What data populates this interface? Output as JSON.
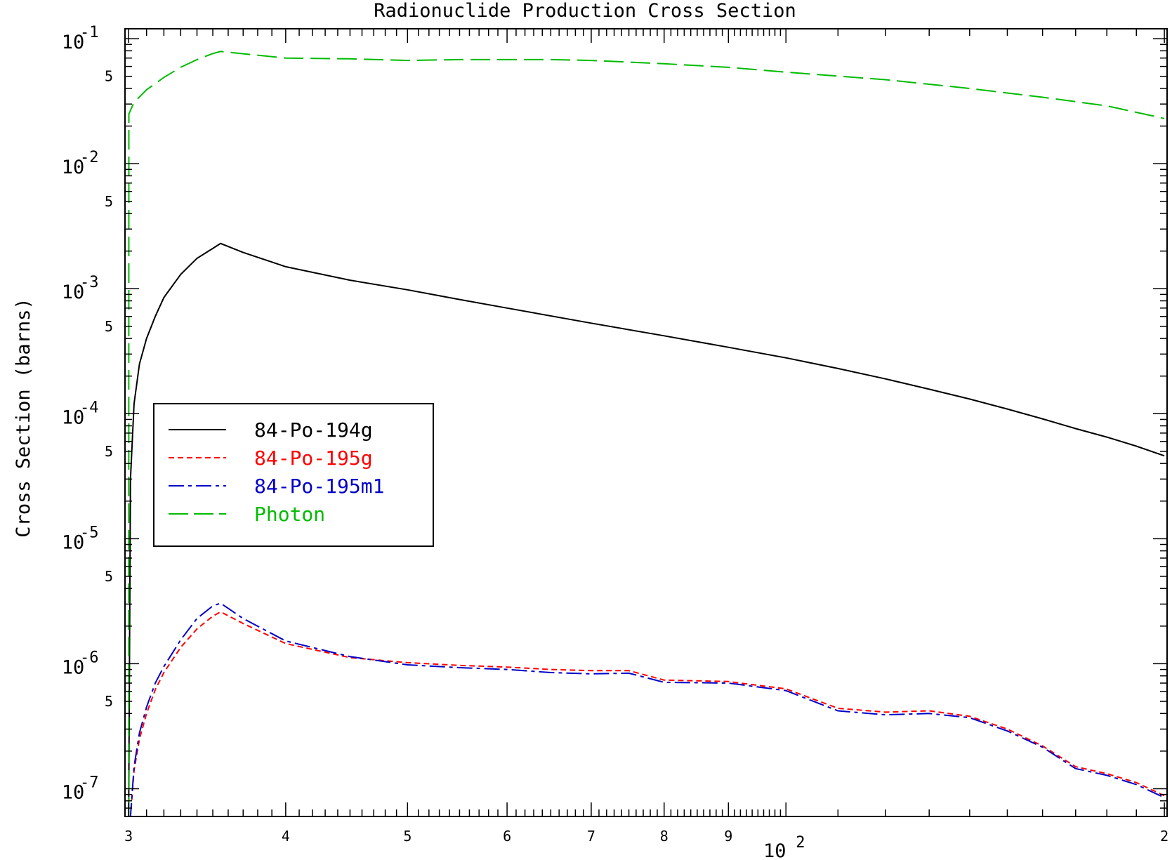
{
  "chart_data": {
    "type": "line",
    "title": "Radionuclide Production Cross Section",
    "ylabel": "Cross Section (barns)",
    "xlabel": "",
    "x_scale": "log",
    "y_scale": "log",
    "xlim": [
      29.8,
      201
    ],
    "ylim": [
      6e-08,
      0.12
    ],
    "x_major_ticks": [
      {
        "value": 30,
        "label": "3"
      },
      {
        "value": 40,
        "label": "4"
      },
      {
        "value": 50,
        "label": "5"
      },
      {
        "value": 60,
        "label": "6"
      },
      {
        "value": 70,
        "label": "7"
      },
      {
        "value": 80,
        "label": "8"
      },
      {
        "value": 90,
        "label": "9"
      },
      {
        "value": 200,
        "label": "2"
      }
    ],
    "x_decade_label": {
      "value": 100,
      "base": "10",
      "exp": "2"
    },
    "y_decade_ticks": [
      {
        "value": 0.1,
        "base": "10",
        "exp": "-1"
      },
      {
        "value": 0.01,
        "base": "10",
        "exp": "-2"
      },
      {
        "value": 0.001,
        "base": "10",
        "exp": "-3"
      },
      {
        "value": 0.0001,
        "base": "10",
        "exp": "-4"
      },
      {
        "value": 1e-05,
        "base": "10",
        "exp": "-5"
      },
      {
        "value": 1e-06,
        "base": "10",
        "exp": "-6"
      },
      {
        "value": 1e-07,
        "base": "10",
        "exp": "-7"
      }
    ],
    "y_half_ticks": [
      {
        "value": 0.05,
        "label": "5"
      },
      {
        "value": 0.005,
        "label": "5"
      },
      {
        "value": 0.0005,
        "label": "5"
      },
      {
        "value": 5e-05,
        "label": "5"
      },
      {
        "value": 5e-06,
        "label": "5"
      },
      {
        "value": 5e-07,
        "label": "5"
      }
    ],
    "legend_position": "center-left",
    "grid": false,
    "series": [
      {
        "name": "84-Po-194g",
        "color": "#000000",
        "dash": "solid",
        "x": [
          30,
          30.1,
          30.3,
          30.6,
          31,
          31.5,
          32,
          33,
          34,
          35,
          35.5,
          37,
          40,
          45,
          50,
          55,
          60,
          70,
          80,
          90,
          100,
          110,
          120,
          130,
          140,
          150,
          160,
          170,
          180,
          190,
          200
        ],
        "y": [
          6e-08,
          3e-05,
          0.00012,
          0.00025,
          0.0004,
          0.0006,
          0.00085,
          0.0013,
          0.00175,
          0.0021,
          0.0023,
          0.00195,
          0.0015,
          0.00117,
          0.00098,
          0.00082,
          0.0007,
          0.00053,
          0.00042,
          0.00034,
          0.00028,
          0.00023,
          0.00019,
          0.000157,
          0.000131,
          0.000109,
          9.1e-05,
          7.6e-05,
          6.5e-05,
          5.5e-05,
          4.6e-05
        ]
      },
      {
        "name": "84-Po-195g",
        "color": "#ff0000",
        "dash": "short",
        "x": [
          30,
          30.1,
          30.3,
          30.6,
          31,
          31.5,
          32,
          33,
          34,
          35,
          35.5,
          37,
          40,
          45,
          50,
          55,
          60,
          65,
          70,
          75,
          80,
          90,
          100,
          110,
          120,
          130,
          140,
          150,
          160,
          170,
          180,
          190,
          200
        ],
        "y": [
          6e-08,
          6e-08,
          1.4e-07,
          2.5e-07,
          4e-07,
          6.2e-07,
          8.5e-07,
          1.35e-06,
          1.9e-06,
          2.4e-06,
          2.6e-06,
          2.1e-06,
          1.45e-06,
          1.12e-06,
          1.02e-06,
          9.7e-07,
          9.4e-07,
          9e-07,
          8.8e-07,
          8.8e-07,
          7.4e-07,
          7.2e-07,
          6.3e-07,
          4.4e-07,
          4.1e-07,
          4.2e-07,
          3.8e-07,
          3e-07,
          2.2e-07,
          1.5e-07,
          1.32e-07,
          1.12e-07,
          8.8e-08
        ]
      },
      {
        "name": "84-Po-195m1",
        "color": "#0000c8",
        "dash": "dashdot",
        "x": [
          30,
          30.1,
          30.3,
          30.6,
          31,
          31.5,
          32,
          33,
          34,
          35,
          35.5,
          37,
          40,
          45,
          50,
          55,
          60,
          65,
          70,
          75,
          80,
          90,
          100,
          110,
          120,
          130,
          140,
          150,
          160,
          170,
          180,
          190,
          200
        ],
        "y": [
          6e-08,
          6e-08,
          1.5e-07,
          2.8e-07,
          4.5e-07,
          7e-07,
          9.5e-07,
          1.55e-06,
          2.3e-06,
          2.9e-06,
          3.05e-06,
          2.3e-06,
          1.52e-06,
          1.14e-06,
          9.8e-07,
          9.3e-07,
          9e-07,
          8.5e-07,
          8.3e-07,
          8.4e-07,
          7.1e-07,
          7e-07,
          6.1e-07,
          4.2e-07,
          3.9e-07,
          4e-07,
          3.7e-07,
          2.9e-07,
          2.15e-07,
          1.45e-07,
          1.28e-07,
          1.08e-07,
          8.5e-08
        ]
      },
      {
        "name": "Photon",
        "color": "#00bb00",
        "dash": "long",
        "x": [
          30,
          30.01,
          30.3,
          31,
          32,
          33,
          34,
          35,
          35.5,
          40,
          45,
          50,
          55,
          60,
          65,
          70,
          80,
          90,
          100,
          120,
          140,
          160,
          180,
          200
        ],
        "y": [
          6e-08,
          0.025,
          0.031,
          0.039,
          0.049,
          0.059,
          0.068,
          0.076,
          0.079,
          0.07,
          0.069,
          0.067,
          0.068,
          0.068,
          0.068,
          0.067,
          0.063,
          0.059,
          0.054,
          0.047,
          0.04,
          0.034,
          0.029,
          0.023
        ]
      }
    ]
  }
}
